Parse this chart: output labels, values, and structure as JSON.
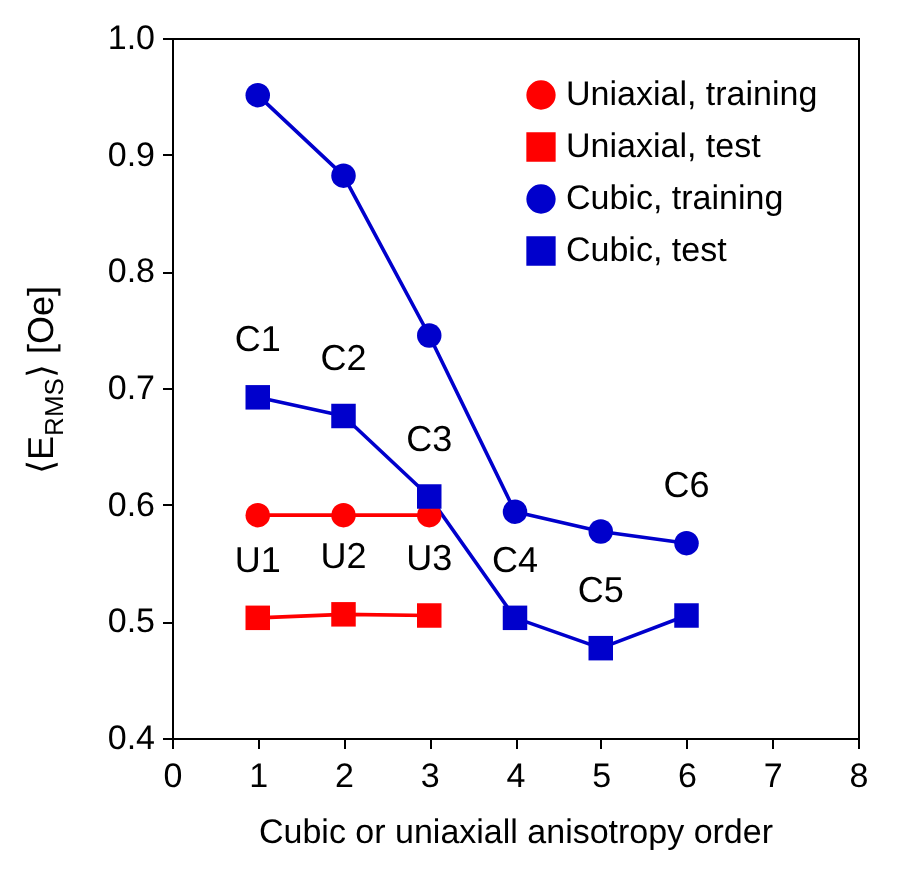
{
  "chart_data": {
    "type": "line",
    "xlabel": "Cubic or uniaxiall anisotropy order",
    "ylabel": "⟨E$_{RMS}$⟩ [Oe]",
    "xlim": [
      0,
      8
    ],
    "xticks": [
      0,
      1,
      2,
      3,
      4,
      5,
      6,
      7,
      8
    ],
    "ylim": [
      0.4,
      1.0
    ],
    "yticks": [
      0.4,
      0.5,
      0.6,
      0.7,
      0.8,
      0.9,
      {
        "value": 1,
        "label": "1.0"
      }
    ],
    "grid": false,
    "legend": "top right",
    "series": [
      {
        "name": "Uniaxial, training",
        "color": "#ff0000",
        "marker": "circle",
        "x": [
          1,
          2,
          3
        ],
        "values": [
          0.591,
          0.591,
          0.591
        ]
      },
      {
        "name": "Uniaxial, test",
        "color": "#ff0000",
        "marker": "square",
        "x": [
          1,
          2,
          3
        ],
        "values": [
          0.503,
          0.506,
          0.505
        ]
      },
      {
        "name": "Cubic, training",
        "color": "#0000cc",
        "marker": "circle",
        "x": [
          1,
          2,
          3,
          4,
          5,
          6
        ],
        "values": [
          0.951,
          0.882,
          0.745,
          0.594,
          0.577,
          0.567
        ]
      },
      {
        "name": "Cubic, test",
        "color": "#0000cc",
        "marker": "square",
        "x": [
          1,
          2,
          3,
          4,
          5,
          6
        ],
        "values": [
          0.692,
          0.676,
          0.607,
          0.503,
          0.477,
          0.505
        ]
      }
    ],
    "annotations": [
      {
        "text": "C1",
        "x": 1,
        "y": 0.692
      },
      {
        "text": "C2",
        "x": 2,
        "y": 0.676
      },
      {
        "text": "C3",
        "x": 3,
        "y": 0.607
      },
      {
        "text": "C4",
        "x": 4,
        "y": 0.503
      },
      {
        "text": "C5",
        "x": 5,
        "y": 0.477
      },
      {
        "text": "C6",
        "x": 6,
        "y": 0.567
      },
      {
        "text": "U1",
        "x": 1,
        "y": 0.503
      },
      {
        "text": "U2",
        "x": 2,
        "y": 0.506
      },
      {
        "text": "U3",
        "x": 3,
        "y": 0.505
      }
    ]
  }
}
